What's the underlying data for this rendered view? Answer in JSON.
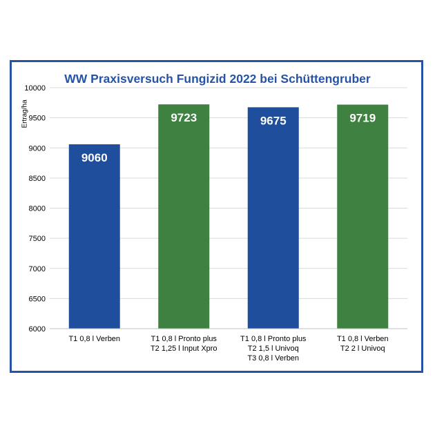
{
  "chart_data": {
    "type": "bar",
    "title": "WW Praxisversuch Fungizid 2022 bei Schüttengruber",
    "xlabel": "",
    "ylabel": "Ertrag/ha",
    "ylim": [
      6000,
      10000
    ],
    "yticks": [
      6000,
      6500,
      7000,
      7500,
      8000,
      8500,
      9000,
      9500,
      10000
    ],
    "grid": true,
    "categories": [
      [
        "T1 0,8 l Verben"
      ],
      [
        "T1 0,8 l Pronto plus",
        "T2 1,25 l Input Xpro"
      ],
      [
        "T1 0,8 l Pronto plus",
        "T2 1,5 l Univoq",
        "T3 0,8 l Verben"
      ],
      [
        "T1 0,8 l Verben",
        "T2 2 l Univoq"
      ]
    ],
    "values": [
      9060,
      9723,
      9675,
      9719
    ],
    "colors": [
      "#1f4e9c",
      "#3f8141",
      "#1f4e9c",
      "#3f8141"
    ]
  }
}
